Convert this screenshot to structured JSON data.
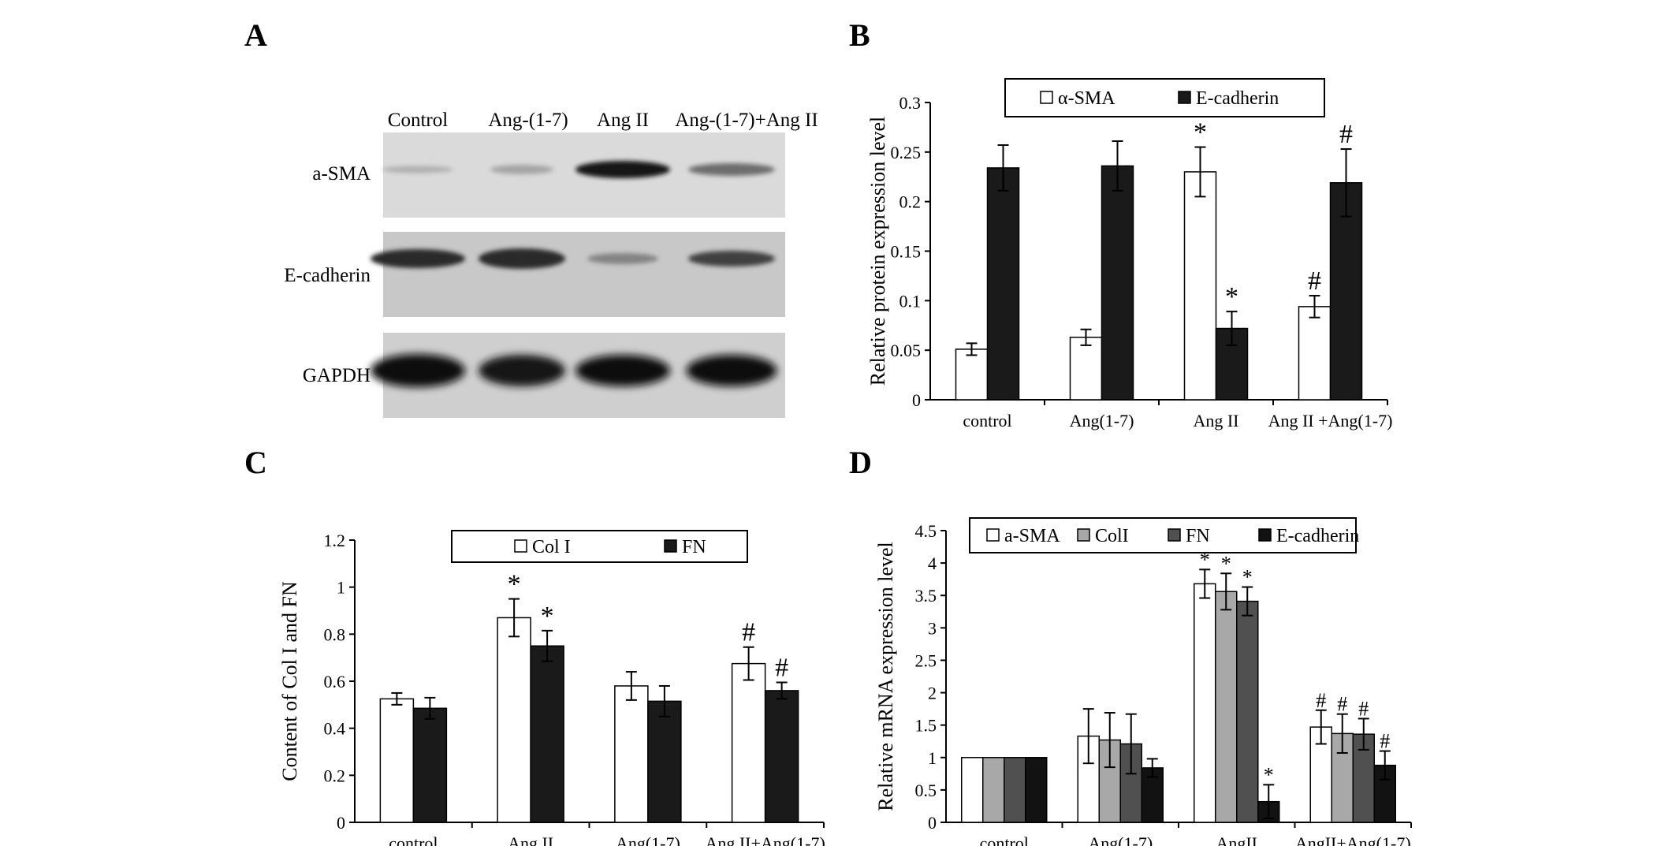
{
  "panels": [
    {
      "letter": "A"
    },
    {
      "letter": "B"
    },
    {
      "letter": "C"
    },
    {
      "letter": "D"
    }
  ],
  "blot": {
    "lanes": [
      "Control",
      "Ang-(1-7)",
      "Ang II",
      "Ang-(1-7)+Ang II"
    ],
    "rows": [
      "a-SMA",
      "E-cadherin",
      "GAPDH"
    ],
    "band_intensity": [
      [
        0.25,
        0.3,
        0.95,
        0.55
      ],
      [
        0.85,
        0.85,
        0.45,
        0.75
      ],
      [
        1.0,
        0.95,
        1.0,
        1.0
      ]
    ]
  },
  "chart_data": [
    {
      "panel": "B",
      "type": "bar",
      "ylabel": "Relative protein expression level",
      "ylim": [
        0,
        0.3
      ],
      "yticks": [
        "0",
        "0.05",
        "0.1",
        "0.15",
        "0.2",
        "0.25",
        "0.3"
      ],
      "categories": [
        "control",
        "Ang(1-7)",
        "Ang II",
        "Ang II +Ang(1-7)"
      ],
      "legend": {
        "placement": "top"
      },
      "series": [
        {
          "name": "α-SMA",
          "color": "#ffffff",
          "values": [
            0.051,
            0.063,
            0.23,
            0.094
          ],
          "errors": [
            0.006,
            0.008,
            0.025,
            0.011
          ],
          "markers": [
            "",
            "",
            "*",
            "#"
          ]
        },
        {
          "name": "E-cadherin",
          "color": "#1a1a1a",
          "values": [
            0.234,
            0.236,
            0.072,
            0.219
          ],
          "errors": [
            0.023,
            0.025,
            0.017,
            0.034
          ],
          "markers": [
            "",
            "",
            "*",
            "#"
          ]
        }
      ]
    },
    {
      "panel": "C",
      "type": "bar",
      "ylabel": "Content of Col I and FN",
      "ylim": [
        0,
        1.2
      ],
      "yticks": [
        "0",
        "0.2",
        "0.4",
        "0.6",
        "0.8",
        "1",
        "1.2"
      ],
      "categories": [
        "control",
        "Ang II",
        "Ang(1-7)",
        "Ang II+Ang(1-7)"
      ],
      "legend": {
        "placement": "top"
      },
      "series": [
        {
          "name": "Col I",
          "color": "#ffffff",
          "values": [
            0.525,
            0.87,
            0.58,
            0.675
          ],
          "errors": [
            0.025,
            0.08,
            0.06,
            0.07
          ],
          "markers": [
            "",
            "*",
            "",
            "#"
          ]
        },
        {
          "name": "FN",
          "color": "#1a1a1a",
          "values": [
            0.485,
            0.75,
            0.515,
            0.56
          ],
          "errors": [
            0.045,
            0.065,
            0.065,
            0.035
          ],
          "markers": [
            "",
            "*",
            "",
            "#"
          ]
        }
      ]
    },
    {
      "panel": "D",
      "type": "bar",
      "ylabel": "Relative mRNA expression level",
      "ylim": [
        0,
        4.5
      ],
      "yticks": [
        "0",
        "0.5",
        "1",
        "1.5",
        "2",
        "2.5",
        "3",
        "3.5",
        "4",
        "4.5"
      ],
      "categories": [
        "control",
        "Ang(1-7)",
        "AngII",
        "AngII+Ang(1-7)"
      ],
      "legend": {
        "placement": "top"
      },
      "series": [
        {
          "name": "a-SMA",
          "color": "#ffffff",
          "values": [
            1.0,
            1.33,
            3.68,
            1.47
          ],
          "errors": [
            0,
            0.42,
            0.22,
            0.26
          ],
          "markers": [
            "",
            "",
            "*",
            "#"
          ]
        },
        {
          "name": "ColI",
          "color": "#a8a8a8",
          "values": [
            1.0,
            1.27,
            3.56,
            1.37
          ],
          "errors": [
            0,
            0.42,
            0.28,
            0.3
          ],
          "markers": [
            "",
            "",
            "*",
            "#"
          ]
        },
        {
          "name": "FN",
          "color": "#505050",
          "values": [
            1.0,
            1.21,
            3.41,
            1.36
          ],
          "errors": [
            0,
            0.46,
            0.22,
            0.24
          ],
          "markers": [
            "",
            "",
            "*",
            "#"
          ]
        },
        {
          "name": "E-cadherin",
          "color": "#121212",
          "values": [
            1.0,
            0.84,
            0.32,
            0.88
          ],
          "errors": [
            0,
            0.14,
            0.26,
            0.22
          ],
          "markers": [
            "",
            "",
            "*",
            "#"
          ]
        }
      ]
    }
  ]
}
